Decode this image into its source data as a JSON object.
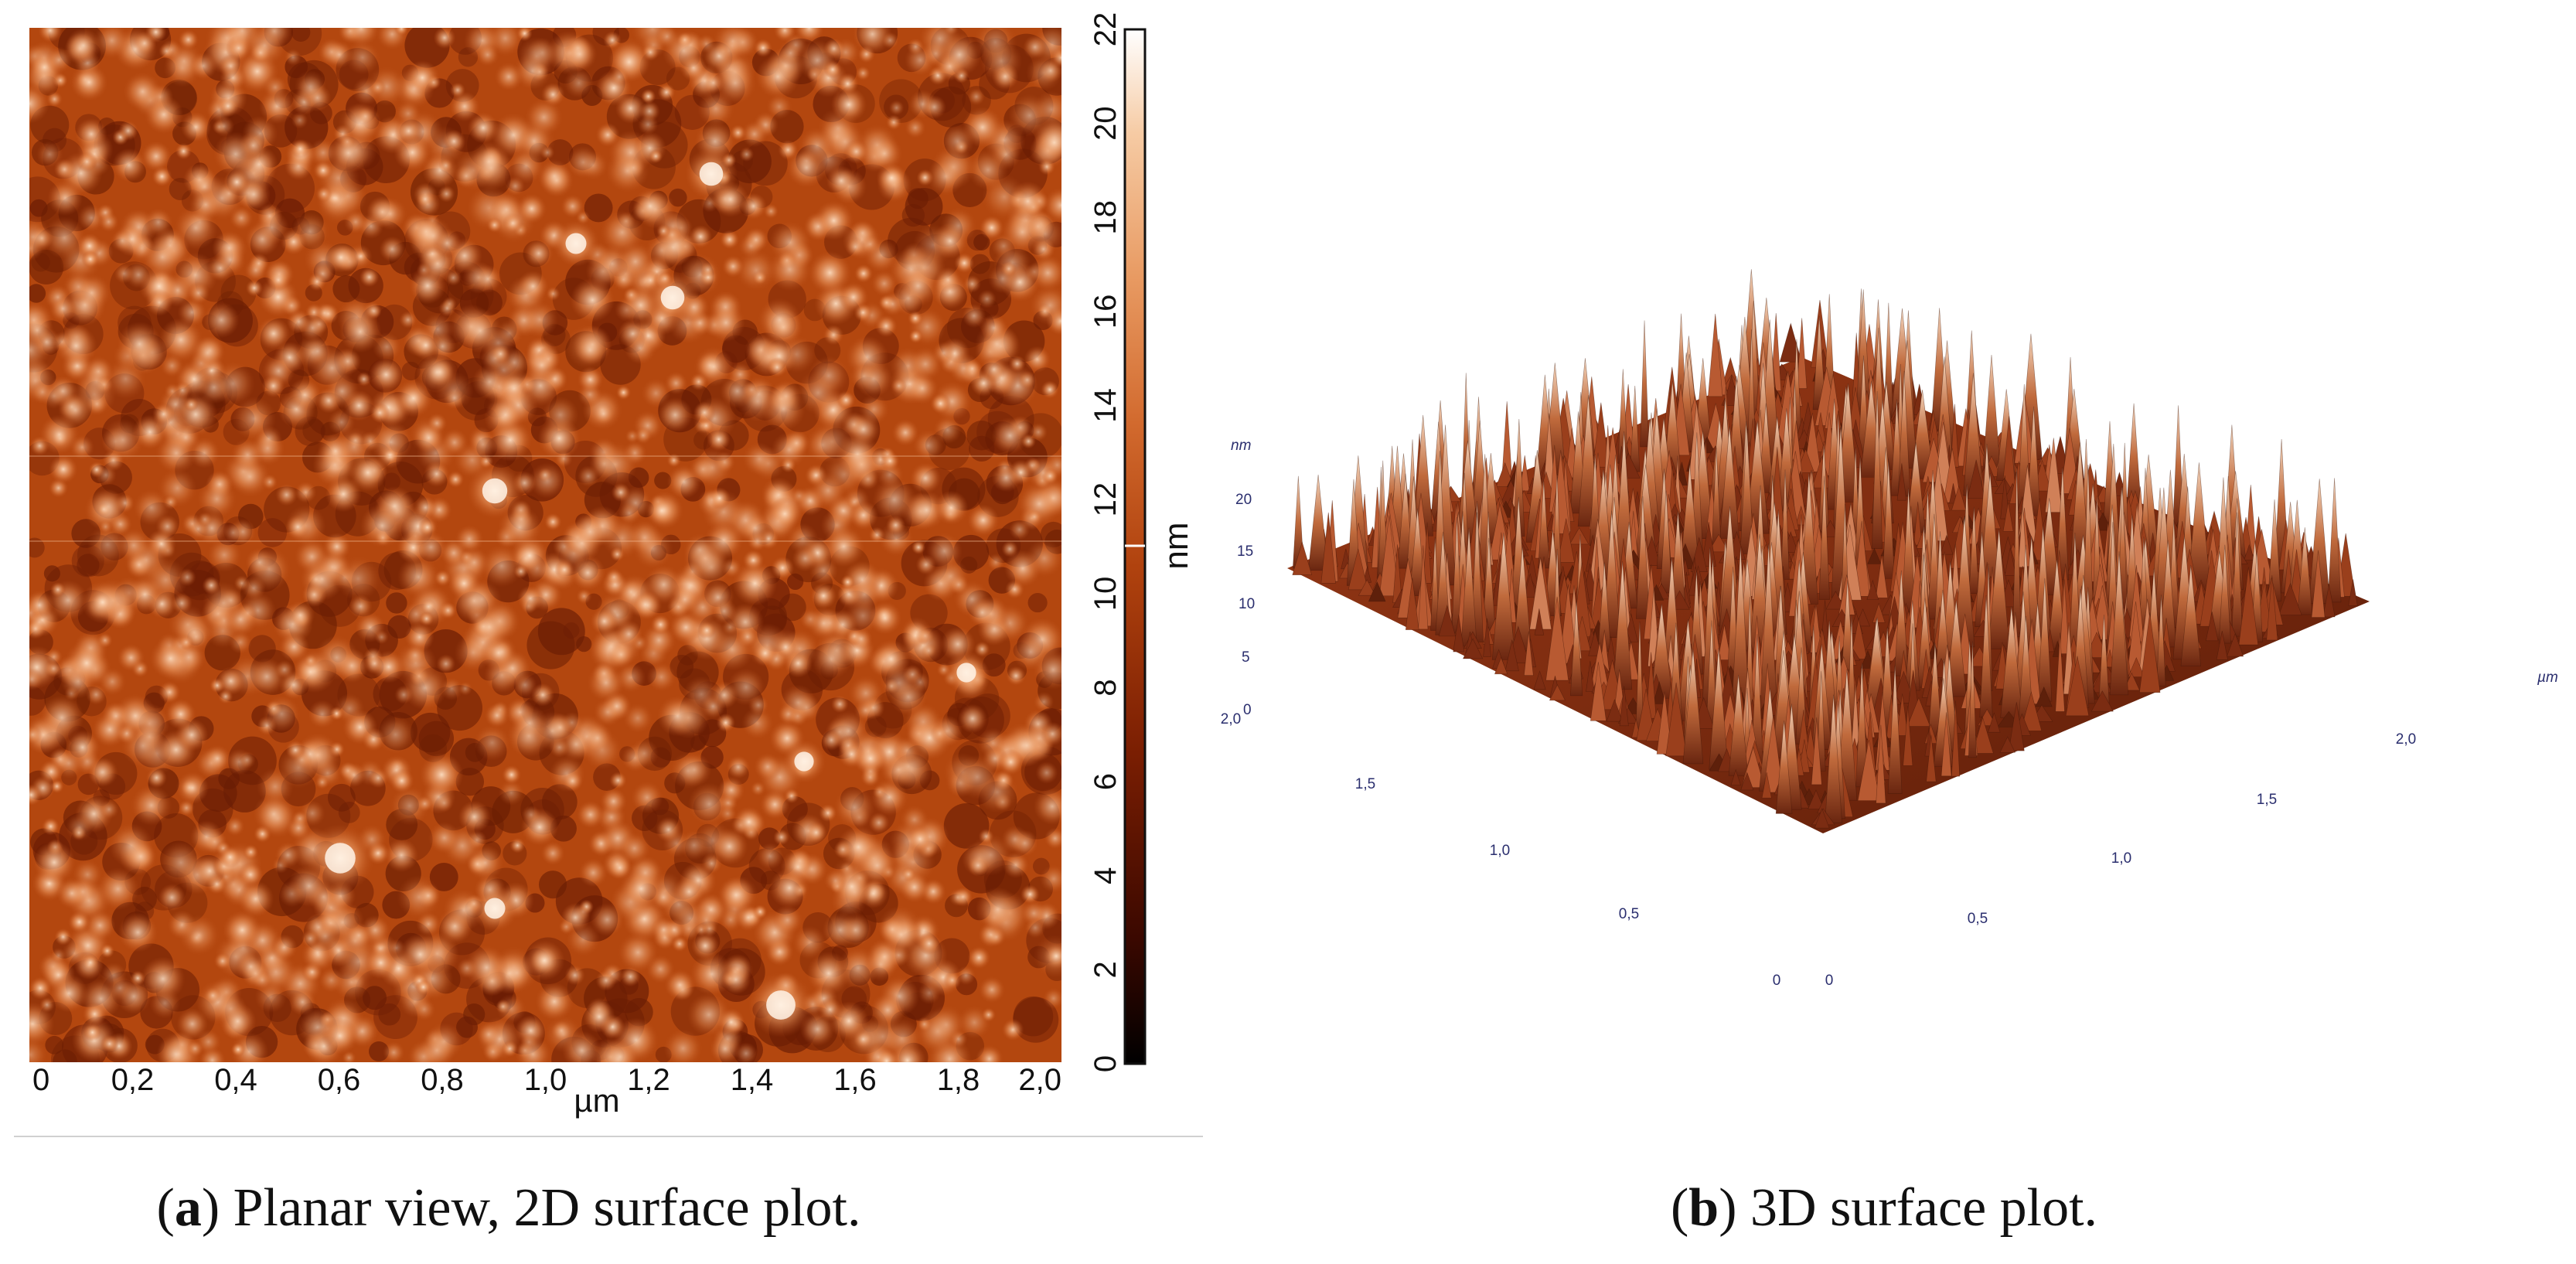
{
  "chart_data": [
    {
      "type": "heatmap",
      "panel_label": "a",
      "caption": "Planar view, 2D surface plot.",
      "xlabel": "µm",
      "x_ticks": [
        "0",
        "0,2",
        "0,4",
        "0,6",
        "0,8",
        "1,0",
        "1,2",
        "1,4",
        "1,6",
        "1,8",
        "2,0"
      ],
      "xlim": [
        0,
        2.0
      ],
      "colorbar": {
        "label": "nm",
        "ticks": [
          "0",
          "2",
          "4",
          "6",
          "8",
          "10",
          "12",
          "14",
          "16",
          "18",
          "20",
          "22"
        ],
        "range": [
          0,
          22
        ]
      },
      "colormap": [
        "#000000",
        "#3a0800",
        "#7a1e02",
        "#b0420e",
        "#d26a2e",
        "#e89a62",
        "#f6cba4",
        "#ffffff"
      ]
    },
    {
      "type": "surface3d",
      "panel_label": "b",
      "caption": "3D surface plot.",
      "z_unit": "nm",
      "z_ticks": [
        "20",
        "15",
        "10",
        "5",
        "0"
      ],
      "x_unit": "µm",
      "x_ticks": [
        "0",
        "0,5",
        "1,0",
        "1,5",
        "2,0"
      ],
      "y_ticks": [
        "0",
        "0,5",
        "1,0",
        "1,5",
        "2,0"
      ]
    }
  ]
}
